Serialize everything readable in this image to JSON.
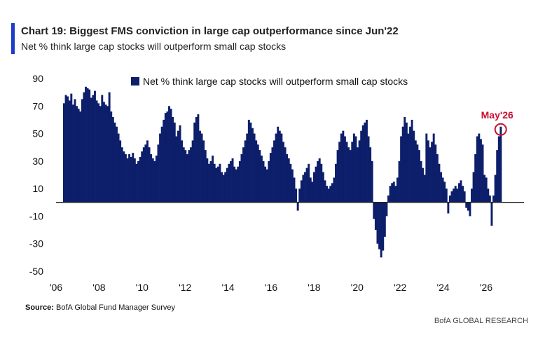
{
  "colors": {
    "accent": "#1a3cc8",
    "bars": "#0d1f6b",
    "highlight": "#c8102e"
  },
  "header": {
    "title": "Chart 19: Biggest FMS conviction in large cap outperformance since Jun'22",
    "subtitle": "Net % think large cap stocks will outperform small cap stocks"
  },
  "footer": {
    "source_label": "Source:",
    "source_text": " BofA Global Fund Manager Survey",
    "brand": "BofA GLOBAL RESEARCH"
  },
  "chart_data": {
    "type": "bar",
    "title": "Chart 19: Biggest FMS conviction in large cap outperformance since Jun'22",
    "subtitle": "Net % think large cap stocks will outperform small cap stocks",
    "xlabel": "",
    "ylabel": "",
    "ylim": [
      -50,
      90
    ],
    "yticks": [
      90,
      70,
      50,
      30,
      10,
      -10,
      -30,
      -50
    ],
    "xticks": [
      "'06",
      "'08",
      "'10",
      "'12",
      "'14",
      "'16",
      "'18",
      "'20",
      "'22",
      "'24",
      "'26"
    ],
    "grid": false,
    "legend": {
      "position": "top",
      "entries": [
        "Net % think large cap stocks will outperform small cap stocks"
      ]
    },
    "annotation": {
      "label": "May'26",
      "value": 55
    },
    "x_start": "2006-01",
    "series": [
      {
        "name": "Net % think large cap stocks will outperform small cap stocks",
        "values": [
          72,
          78,
          77,
          74,
          79,
          71,
          75,
          70,
          68,
          66,
          75,
          80,
          84,
          83,
          82,
          76,
          78,
          81,
          74,
          72,
          70,
          78,
          73,
          71,
          70,
          80,
          66,
          62,
          58,
          55,
          50,
          45,
          40,
          37,
          35,
          32,
          35,
          33,
          36,
          32,
          28,
          30,
          33,
          37,
          40,
          42,
          45,
          40,
          35,
          32,
          30,
          34,
          42,
          50,
          55,
          60,
          65,
          66,
          70,
          68,
          62,
          58,
          48,
          52,
          56,
          45,
          40,
          38,
          35,
          38,
          40,
          45,
          58,
          62,
          64,
          52,
          50,
          45,
          38,
          32,
          28,
          30,
          34,
          28,
          25,
          26,
          28,
          22,
          20,
          22,
          25,
          28,
          30,
          32,
          26,
          24,
          26,
          30,
          35,
          40,
          45,
          50,
          60,
          58,
          54,
          50,
          45,
          42,
          38,
          34,
          30,
          26,
          24,
          30,
          36,
          40,
          45,
          50,
          55,
          52,
          50,
          44,
          40,
          35,
          32,
          28,
          24,
          18,
          10,
          -6,
          10,
          16,
          20,
          22,
          25,
          28,
          18,
          15,
          22,
          26,
          30,
          32,
          28,
          22,
          16,
          12,
          10,
          12,
          14,
          18,
          28,
          38,
          44,
          50,
          52,
          48,
          44,
          40,
          38,
          44,
          50,
          48,
          40,
          45,
          52,
          56,
          58,
          60,
          48,
          40,
          30,
          -12,
          -20,
          -30,
          -34,
          -40,
          -35,
          -25,
          -10,
          5,
          12,
          14,
          15,
          12,
          18,
          30,
          48,
          55,
          62,
          58,
          50,
          55,
          60,
          52,
          45,
          42,
          38,
          30,
          25,
          20,
          50,
          45,
          40,
          44,
          50,
          42,
          35,
          28,
          22,
          18,
          15,
          10,
          -8,
          5,
          8,
          10,
          12,
          10,
          14,
          16,
          12,
          8,
          -4,
          -6,
          -10,
          10,
          22,
          35,
          48,
          50,
          46,
          42,
          20,
          18,
          10,
          5,
          -17,
          5,
          20,
          38,
          48,
          55
        ]
      }
    ]
  }
}
